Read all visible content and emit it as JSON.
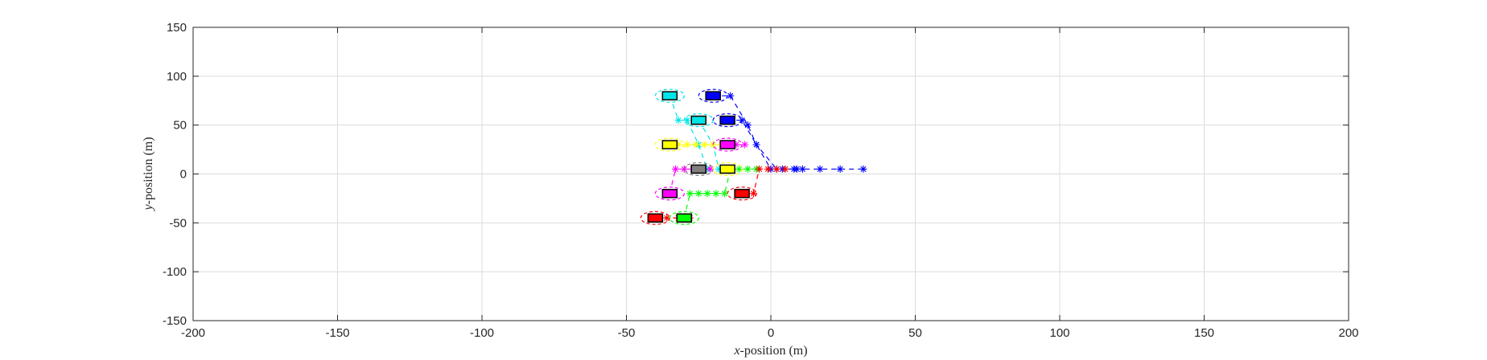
{
  "chart_data": {
    "type": "scatter",
    "xlabel": {
      "var": "x",
      "rest": "-position (m)"
    },
    "ylabel": {
      "var": "y",
      "rest": "-position (m)"
    },
    "xlim": [
      -200,
      200
    ],
    "ylim": [
      -150,
      150
    ],
    "xticks": [
      -200,
      -150,
      -100,
      -50,
      0,
      50,
      100,
      150,
      200
    ],
    "yticks": [
      -150,
      -100,
      -50,
      0,
      50,
      100,
      150
    ],
    "grid": true,
    "vehicles": [
      {
        "color": "#00e5e5",
        "x": -35,
        "y": 80
      },
      {
        "color": "#0000ff",
        "x": -20,
        "y": 80
      },
      {
        "color": "#00e5e5",
        "x": -25,
        "y": 55
      },
      {
        "color": "#0000ff",
        "x": -15,
        "y": 55
      },
      {
        "color": "#ffff00",
        "x": -35,
        "y": 30
      },
      {
        "color": "#ff00ff",
        "x": -15,
        "y": 30
      },
      {
        "color": "#808080",
        "x": -25,
        "y": 5
      },
      {
        "color": "#ffff00",
        "x": -15,
        "y": 5
      },
      {
        "color": "#ff00ff",
        "x": -35,
        "y": -20
      },
      {
        "color": "#ff0000",
        "x": -10,
        "y": -20
      },
      {
        "color": "#ff0000",
        "x": -40,
        "y": -45
      },
      {
        "color": "#00ff00",
        "x": -30,
        "y": -45
      }
    ],
    "trajectories": [
      {
        "color": "#0000ff",
        "points": [
          [
            -20,
            80
          ],
          [
            -14,
            80
          ],
          [
            -8,
            50
          ],
          [
            -5,
            30
          ],
          [
            2,
            5
          ],
          [
            9,
            5
          ],
          [
            17,
            5
          ],
          [
            24,
            5
          ],
          [
            32,
            5
          ]
        ]
      },
      {
        "color": "#0000ff",
        "points": [
          [
            -15,
            55
          ],
          [
            -10,
            55
          ],
          [
            -5,
            30
          ],
          [
            0,
            5
          ],
          [
            4,
            5
          ],
          [
            8,
            5
          ],
          [
            11,
            5
          ]
        ]
      },
      {
        "color": "#00e5e5",
        "points": [
          [
            -35,
            80
          ],
          [
            -32,
            55
          ],
          [
            -29,
            55
          ],
          [
            -25,
            30
          ],
          [
            -22,
            5
          ]
        ]
      },
      {
        "color": "#00e5e5",
        "points": [
          [
            -25,
            55
          ],
          [
            -20,
            30
          ],
          [
            -18,
            5
          ],
          [
            -14,
            5
          ]
        ]
      },
      {
        "color": "#ffff00",
        "points": [
          [
            -35,
            30
          ],
          [
            -32,
            30
          ],
          [
            -29,
            30
          ],
          [
            -26,
            30
          ],
          [
            -23,
            30
          ],
          [
            -20,
            30
          ],
          [
            -17,
            30
          ]
        ]
      },
      {
        "color": "#ff00ff",
        "points": [
          [
            -15,
            30
          ],
          [
            -12,
            30
          ],
          [
            -9,
            30
          ]
        ]
      },
      {
        "color": "#ff00ff",
        "points": [
          [
            -35,
            -20
          ],
          [
            -33,
            5
          ],
          [
            -30,
            5
          ],
          [
            -27,
            5
          ],
          [
            -24,
            5
          ],
          [
            -21,
            5
          ]
        ]
      },
      {
        "color": "#00ff00",
        "points": [
          [
            -30,
            -45
          ],
          [
            -28,
            -20
          ],
          [
            -25,
            -20
          ],
          [
            -22,
            -20
          ],
          [
            -19,
            -20
          ],
          [
            -16,
            -20
          ],
          [
            -14,
            5
          ],
          [
            -11,
            5
          ],
          [
            -8,
            5
          ],
          [
            -5,
            5
          ]
        ]
      },
      {
        "color": "#ff0000",
        "points": [
          [
            -40,
            -45
          ],
          [
            -36,
            -45
          ],
          [
            -32,
            -45
          ],
          [
            -28,
            -45
          ]
        ]
      },
      {
        "color": "#ff0000",
        "points": [
          [
            -10,
            -20
          ],
          [
            -6,
            -20
          ],
          [
            -4,
            5
          ],
          [
            -1,
            5
          ],
          [
            2,
            5
          ],
          [
            5,
            5
          ]
        ]
      }
    ]
  }
}
